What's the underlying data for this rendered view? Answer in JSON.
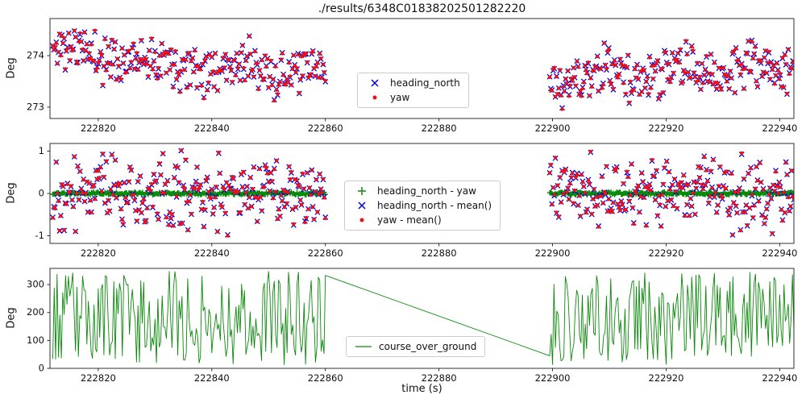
{
  "figure": {
    "title": "./results/6348C01838202501282220",
    "xlabel": "time (s)"
  },
  "chart_data": [
    {
      "type": "scatter",
      "ylabel": "Deg",
      "xlim": [
        222811.5,
        222942.5
      ],
      "ylim": [
        272.78,
        274.72
      ],
      "xticks": [
        222820,
        222840,
        222860,
        222880,
        222900,
        222920,
        222940
      ],
      "yticks": [
        273,
        274
      ],
      "segments": [
        [
          222812,
          222860
        ],
        [
          222899.5,
          222942.5
        ]
      ],
      "x_step": 0.2,
      "seed": 11,
      "series": [
        {
          "name": "heading_north",
          "marker": "x",
          "color": "#0000dd"
        },
        {
          "name": "yaw",
          "marker": "dot",
          "color": "#ee1111"
        }
      ],
      "gen": {
        "base_seg1": [
          274.12,
          273.6
        ],
        "base_seg2": [
          273.52,
          273.82
        ],
        "noise": 0.45,
        "pair_jitter": 0.06
      },
      "legend_items": [
        {
          "label": "heading_north",
          "marker": "x",
          "color": "#0000dd"
        },
        {
          "label": "yaw",
          "marker": "dot",
          "color": "#ee1111"
        }
      ]
    },
    {
      "type": "scatter",
      "ylabel": "Deg",
      "xlim": [
        222811.5,
        222942.5
      ],
      "ylim": [
        -1.18,
        1.18
      ],
      "xticks": [
        222820,
        222840,
        222860,
        222880,
        222900,
        222920,
        222940
      ],
      "yticks": [
        -1,
        0,
        1
      ],
      "segments": [
        [
          222812,
          222860
        ],
        [
          222899.5,
          222942.5
        ]
      ],
      "x_step": 0.2,
      "seed": 29,
      "series": [
        {
          "name": "heading_north - yaw",
          "marker": "plus",
          "color": "#0a8a0a"
        },
        {
          "name": "heading_north - mean()",
          "marker": "x",
          "color": "#0000dd"
        },
        {
          "name": "yaw - mean()",
          "marker": "dot",
          "color": "#ee1111"
        }
      ],
      "gen": {
        "band": 0.07,
        "dev_amp": 1.05,
        "pair_jitter": 0.06
      },
      "legend_items": [
        {
          "label": "heading_north - yaw",
          "marker": "plus",
          "color": "#0a8a0a"
        },
        {
          "label": "heading_north - mean()",
          "marker": "x",
          "color": "#0000dd"
        },
        {
          "label": "yaw - mean()",
          "marker": "dot",
          "color": "#ee1111"
        }
      ]
    },
    {
      "type": "line",
      "ylabel": "Deg",
      "xlim": [
        222811.5,
        222942.5
      ],
      "ylim": [
        0,
        358
      ],
      "xticks": [
        222820,
        222840,
        222860,
        222880,
        222900,
        222920,
        222940
      ],
      "yticks": [
        0,
        100,
        200,
        300
      ],
      "segments": [
        [
          222812,
          222860
        ],
        [
          222899.5,
          222942.5
        ]
      ],
      "x_step": 0.25,
      "seed": 53,
      "series": [
        {
          "name": "course_over_ground",
          "marker": "line",
          "color": "#0a8a0a"
        }
      ],
      "gen": {
        "min": 12,
        "max": 348,
        "gap_start_value": 333,
        "gap_end_value": 45
      },
      "legend_items": [
        {
          "label": "course_over_ground",
          "marker": "line",
          "color": "#0a8a0a"
        }
      ]
    }
  ]
}
